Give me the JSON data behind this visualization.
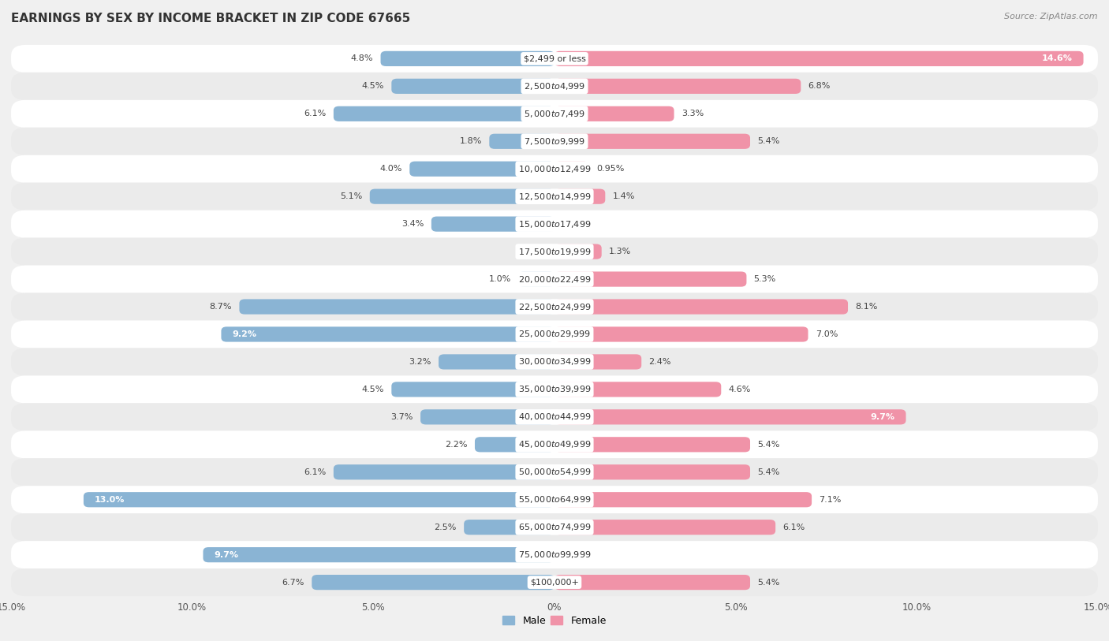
{
  "title": "EARNINGS BY SEX BY INCOME BRACKET IN ZIP CODE 67665",
  "source": "Source: ZipAtlas.com",
  "categories": [
    "$2,499 or less",
    "$2,500 to $4,999",
    "$5,000 to $7,499",
    "$7,500 to $9,999",
    "$10,000 to $12,499",
    "$12,500 to $14,999",
    "$15,000 to $17,499",
    "$17,500 to $19,999",
    "$20,000 to $22,499",
    "$22,500 to $24,999",
    "$25,000 to $29,999",
    "$30,000 to $34,999",
    "$35,000 to $39,999",
    "$40,000 to $44,999",
    "$45,000 to $49,999",
    "$50,000 to $54,999",
    "$55,000 to $64,999",
    "$65,000 to $74,999",
    "$75,000 to $99,999",
    "$100,000+"
  ],
  "male_values": [
    4.8,
    4.5,
    6.1,
    1.8,
    4.0,
    5.1,
    3.4,
    0.0,
    1.0,
    8.7,
    9.2,
    3.2,
    4.5,
    3.7,
    2.2,
    6.1,
    13.0,
    2.5,
    9.7,
    6.7
  ],
  "female_values": [
    14.6,
    6.8,
    3.3,
    5.4,
    0.95,
    1.4,
    0.0,
    1.3,
    5.3,
    8.1,
    7.0,
    2.4,
    4.6,
    9.7,
    5.4,
    5.4,
    7.1,
    6.1,
    0.0,
    5.4
  ],
  "male_color": "#8ab4d4",
  "female_color": "#f093a8",
  "row_color_even": "#ffffff",
  "row_color_odd": "#ebebeb",
  "background_color": "#f0f0f0",
  "xlim": 15.0,
  "legend_male": "Male",
  "legend_female": "Female",
  "bar_height": 0.55,
  "title_fontsize": 11,
  "label_fontsize": 8,
  "category_fontsize": 8,
  "axis_tick_fontsize": 8.5,
  "tick_labels": [
    "15.0%",
    "10.0%",
    "5.0%",
    "0%",
    "5.0%",
    "10.0%",
    "15.0%"
  ],
  "tick_positions": [
    -15,
    -10,
    -5,
    0,
    5,
    10,
    15
  ]
}
